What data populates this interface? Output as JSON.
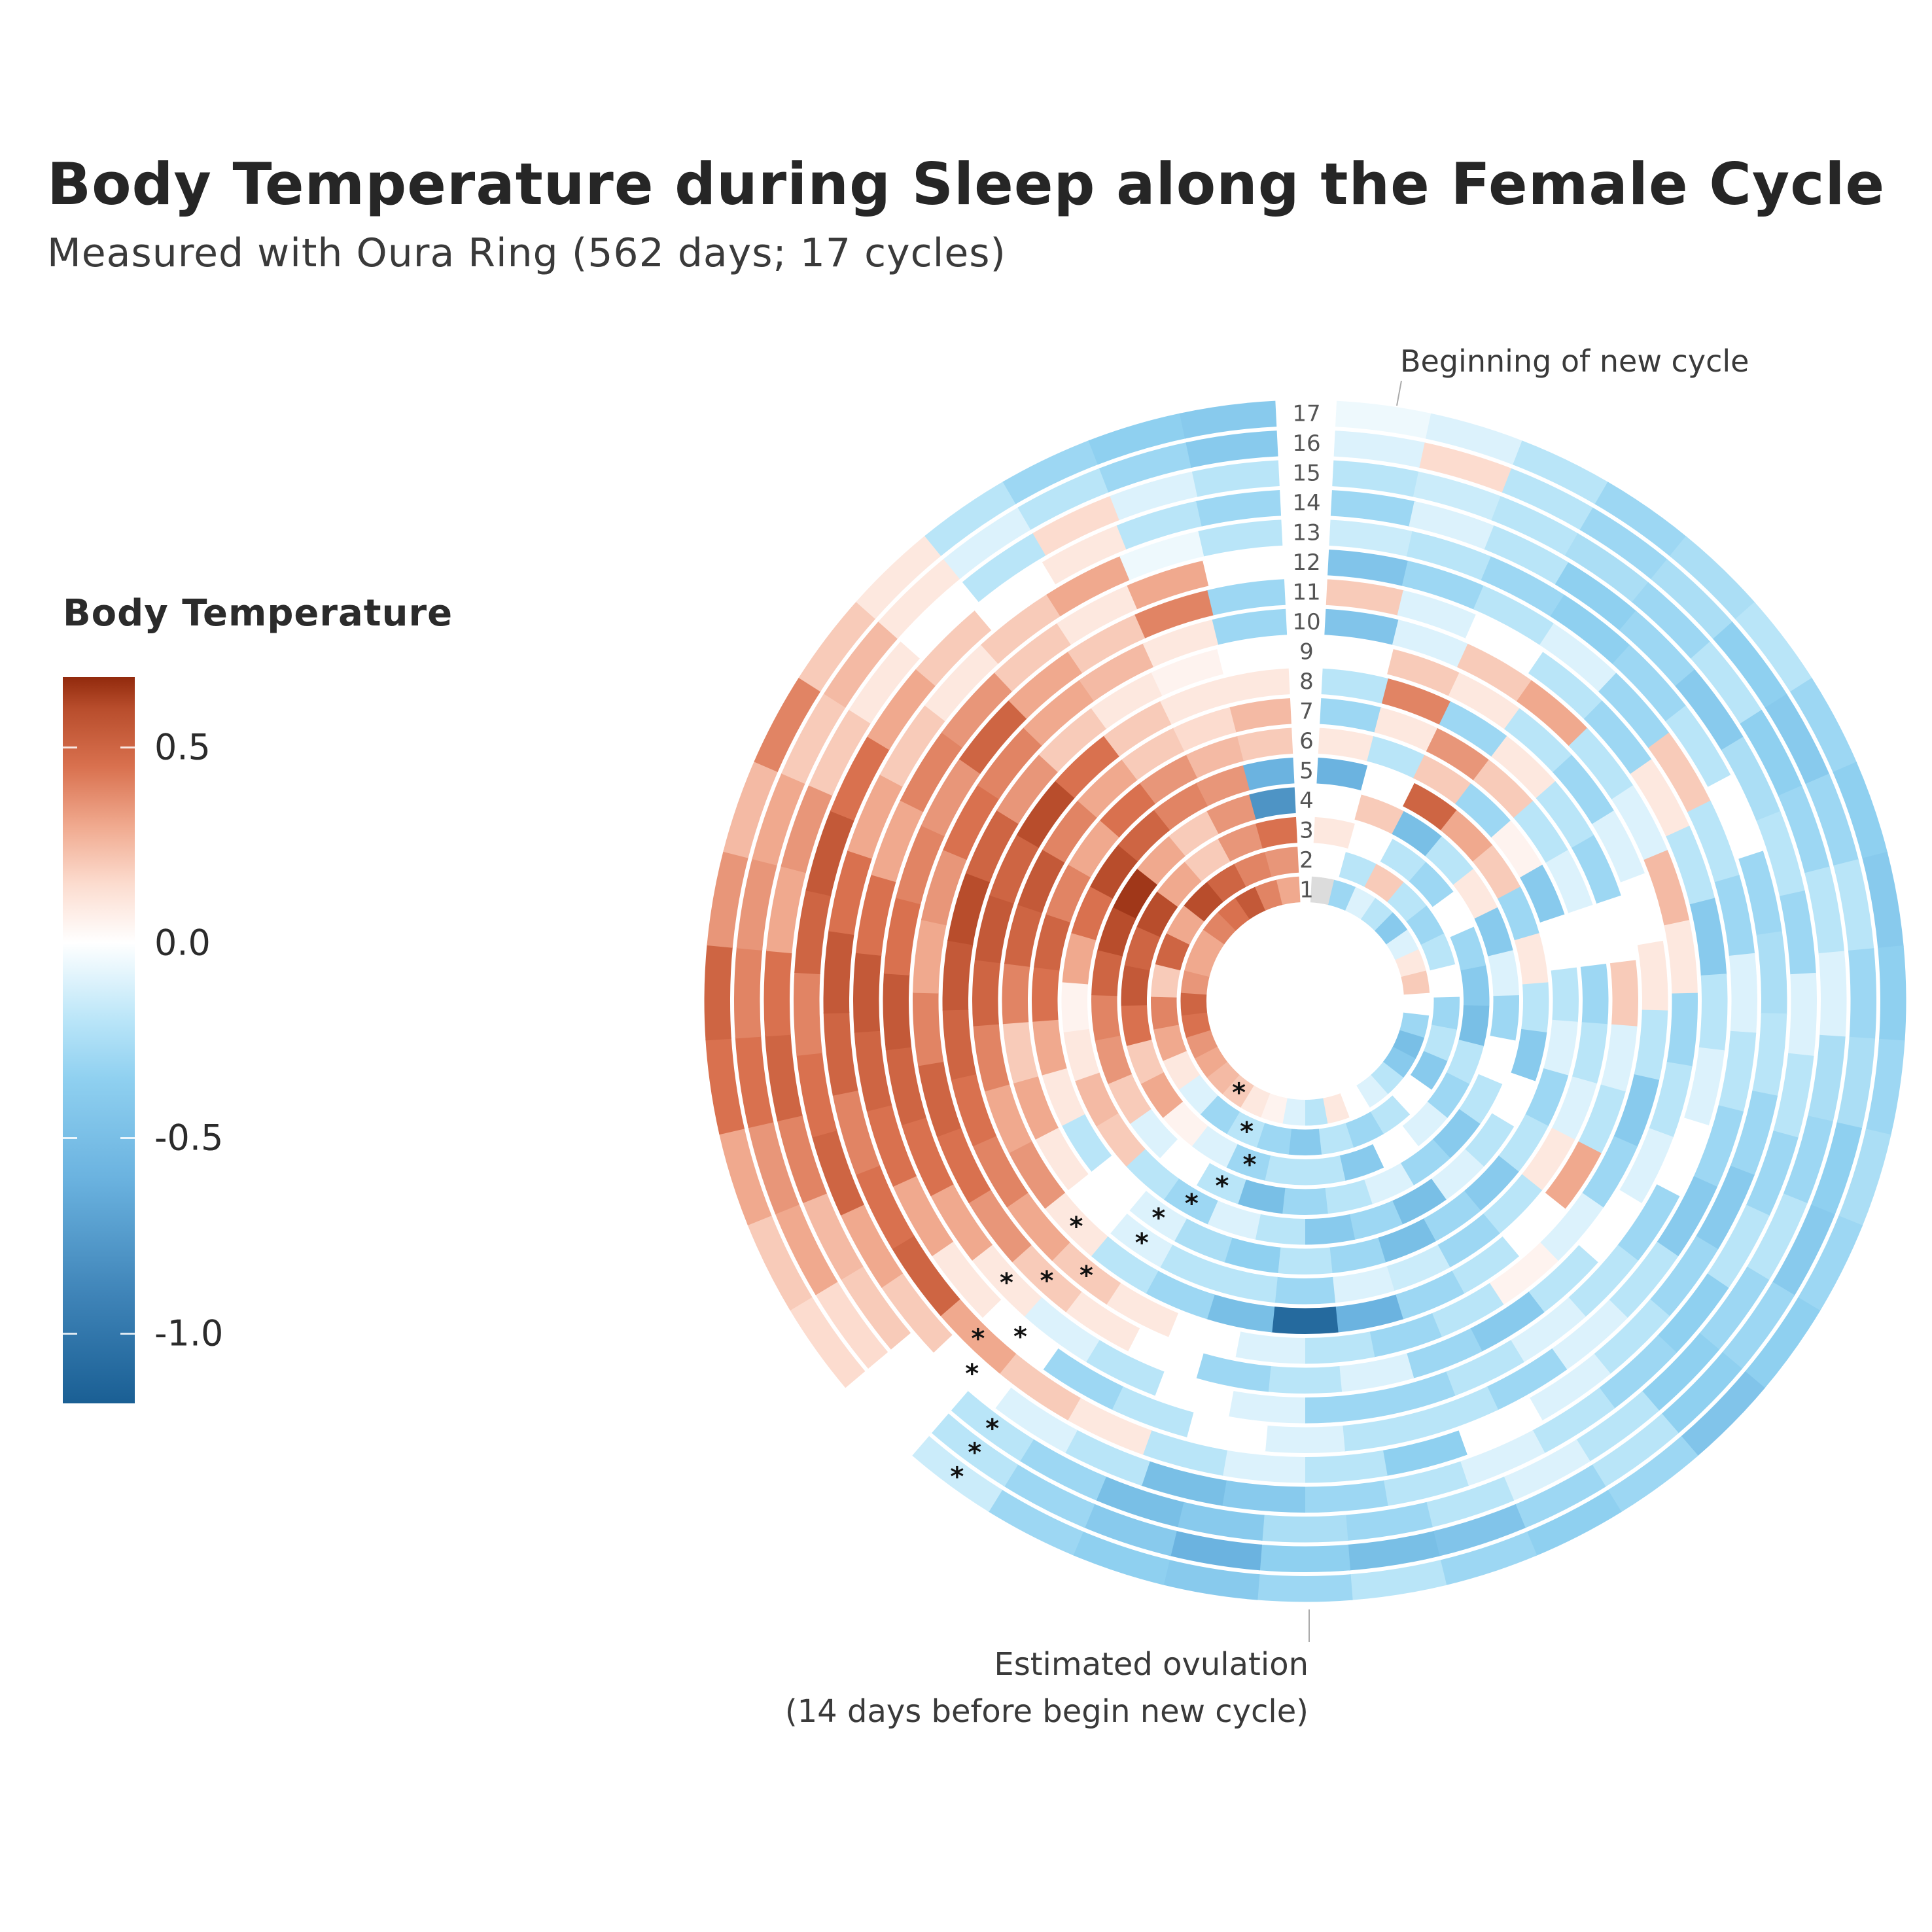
{
  "chart_data": {
    "type": "heatmap",
    "subtype": "polar-radial-heatmap",
    "title": "Body Temperature during Sleep along the Female Cycle",
    "subtitle": "Measured with Oura Ring (562 days; 17 cycles)",
    "legend": {
      "title": "Body Temperature",
      "placement": "left",
      "ticks": [
        "0.5",
        "0.0",
        "-0.5",
        "-1.0"
      ],
      "tick_values": [
        0.5,
        0.0,
        -0.5,
        -1.0
      ],
      "range": [
        -1.18,
        0.68
      ]
    },
    "cycle_labels": [
      "1",
      "2",
      "3",
      "4",
      "5",
      "6",
      "7",
      "8",
      "9",
      "10",
      "11",
      "12",
      "13",
      "14",
      "15",
      "16",
      "17"
    ],
    "annotations": {
      "top": "Beginning of new cycle",
      "bottom_line1": "Estimated ovulation",
      "bottom_line2": "(14 days before begin  new cycle)",
      "ovulation_marker": "*"
    },
    "missing_color": "#dcdcdc",
    "colorscale": {
      "-1.18": "#1a5f94",
      "-0.9": "#3f84b8",
      "-0.6": "#6bb3e0",
      "-0.35": "#8fd0f0",
      "-0.2": "#b9e5f8",
      "0.0": "#ffffff",
      "0.15": "#fcdccf",
      "0.3": "#f0a98e",
      "0.45": "#d9714f",
      "0.6": "#b84d2c",
      "0.68": "#922a0d"
    },
    "series": [
      {
        "name": "1",
        "values": [
          null,
          -0.3,
          -0.1,
          -0.2,
          -0.4,
          -0.1,
          0.1,
          0.2,
          0.0,
          -0.3,
          -0.5,
          -0.4,
          -0.2,
          -0.1,
          0.0,
          0.1,
          -0.2,
          -0.1,
          0.05,
          0.1,
          0.2,
          0.25,
          0.3,
          0.35,
          0.45,
          0.5,
          0.35,
          0.3,
          0.3,
          0.4,
          0.45,
          0.55,
          0.4,
          0.3
        ],
        "ovulation_day": 20
      },
      {
        "name": "2",
        "values": [
          0.0,
          -0.2,
          0.2,
          -0.2,
          -0.3,
          -0.2,
          0.0,
          -0.3,
          -0.2,
          -0.4,
          0.0,
          -0.2,
          -0.3,
          -0.2,
          -0.4,
          -0.3,
          -0.2,
          -0.3,
          -0.1,
          0.1,
          0.3,
          0.4,
          0.2,
          0.5,
          0.3,
          0.6,
          0.5,
          0.4,
          0.35
        ],
        "ovulation_day": 16
      },
      {
        "name": "3",
        "values": [
          0.1,
          0.0,
          -0.2,
          -0.3,
          0.0,
          -0.3,
          -0.4,
          -0.5,
          -0.2,
          -0.3,
          -0.1,
          0.0,
          -0.4,
          -0.2,
          -0.2,
          -0.3,
          -0.1,
          0.05,
          0.3,
          0.2,
          0.45,
          0.55,
          0.5,
          0.6,
          0.3,
          0.2,
          0.35,
          0.45
        ],
        "ovulation_day": 15
      },
      {
        "name": "4",
        "values": [
          0.0,
          0.2,
          -0.5,
          -0.2,
          0.1,
          -0.4,
          -0.1,
          -0.3,
          0.0,
          -0.2,
          -0.4,
          -0.3,
          -0.1,
          -0.2,
          -0.3,
          -0.5,
          -0.2,
          0.0,
          -0.1,
          0.2,
          0.35,
          0.4,
          0.5,
          0.6,
          0.65,
          0.3,
          0.2,
          0.35,
          -0.8
        ],
        "ovulation_day": 16
      },
      {
        "name": "5",
        "values": [
          -0.6,
          0.0,
          0.5,
          0.3,
          0.2,
          -0.3,
          0.1,
          -0.2,
          -0.4,
          0.0,
          -0.2,
          -0.1,
          -0.5,
          -0.3,
          -0.4,
          -0.2,
          -0.1,
          -0.3,
          -0.2,
          0.2,
          0.25,
          0.1,
          0.05,
          0.3,
          0.45,
          0.6,
          0.5,
          0.4,
          0.35,
          -0.6
        ],
        "ovulation_day": 17
      },
      {
        "name": "6",
        "values": [
          0.1,
          -0.2,
          0.2,
          -0.3,
          0.05,
          -0.4,
          0.0,
          -0.2,
          -0.1,
          -0.3,
          -0.2,
          -0.4,
          -0.3,
          -0.5,
          -0.3,
          -0.2,
          -0.35,
          -0.25,
          -0.1,
          0.0,
          -0.2,
          0.1,
          0.3,
          0.45,
          0.5,
          0.4,
          0.3,
          0.45,
          0.35,
          0.25,
          0.2
        ],
        "ovulation_day": 18
      },
      {
        "name": "7",
        "values": [
          -0.3,
          0.1,
          0.35,
          0.2,
          -0.2,
          -0.1,
          0.0,
          -0.3,
          -0.2,
          -0.1,
          0.1,
          -0.2,
          -0.3,
          -0.15,
          -0.1,
          -0.3,
          -0.2,
          -0.2,
          -0.1,
          0.0,
          0.1,
          0.3,
          0.2,
          0.4,
          0.5,
          0.55,
          0.4,
          0.3,
          0.2,
          0.15,
          0.25
        ],
        "ovulation_day": 18
      },
      {
        "name": "8",
        "values": [
          -0.2,
          0.4,
          -0.3,
          0.1,
          -0.2,
          -0.3,
          0.0,
          0.2,
          -0.1,
          -0.2,
          0.3,
          0.0,
          -0.2,
          -0.3,
          -0.6,
          -1.1,
          -0.5,
          -0.3,
          -0.2,
          0.1,
          0.35,
          0.3,
          0.4,
          0.5,
          0.55,
          0.5,
          0.6,
          0.45,
          0.2,
          0.1,
          0.1
        ],
        "ovulation_day": 19
      },
      {
        "name": "9",
        "values": [
          0.0,
          0.2,
          0.1,
          -0.2,
          -0.3,
          -0.1,
          0.0,
          0.1,
          -0.2,
          -0.4,
          -0.3,
          -0.1,
          0.05,
          -0.2,
          -0.3,
          -0.2,
          -0.1,
          0.0,
          0.1,
          0.2,
          0.3,
          0.4,
          0.45,
          0.5,
          0.55,
          0.6,
          0.5,
          0.35,
          0.2,
          0.1,
          0.05,
          0.0
        ],
        "ovulation_day": 19
      },
      {
        "name": "10",
        "values": [
          -0.45,
          -0.1,
          0.2,
          0.3,
          -0.2,
          -0.1,
          0.25,
          0.1,
          -0.3,
          -0.2,
          -0.1,
          0.0,
          -0.2,
          -0.4,
          -0.3,
          -0.1,
          -0.2,
          -0.3,
          0.0,
          0.1,
          0.2,
          0.35,
          0.45,
          0.5,
          0.4,
          0.3,
          0.35,
          0.45,
          0.4,
          0.3,
          0.25,
          0.1,
          -0.3
        ],
        "ovulation_day": 20
      },
      {
        "name": "11",
        "values": [
          0.2,
          -0.1,
          0.0,
          -0.2,
          -0.3,
          0.1,
          -0.2,
          -0.4,
          -0.2,
          -0.1,
          0.0,
          -0.3,
          -0.2,
          -0.1,
          -0.2,
          -0.3,
          -0.3,
          -0.1,
          0.0,
          -0.2,
          -0.1,
          0.1,
          0.3,
          0.45,
          0.5,
          0.55,
          0.45,
          0.4,
          0.35,
          0.5,
          0.3,
          0.2,
          0.4,
          -0.3
        ],
        "ovulation_day": 21
      },
      {
        "name": "12",
        "values": [
          -0.45,
          -0.3,
          -0.2,
          -0.1,
          -0.3,
          0.2,
          -0.2,
          -0.3,
          -0.1,
          -0.2,
          -0.3,
          -0.4,
          -0.2,
          -0.1,
          -0.3,
          -0.2,
          -0.2,
          -0.1,
          0.0,
          -0.2,
          -0.3,
          0.0,
          0.1,
          0.3,
          0.45,
          0.5,
          0.55,
          0.45,
          0.3,
          0.4,
          0.35,
          0.2,
          0.1,
          0.3,
          0.0
        ],
        "ovulation_day": 21
      },
      {
        "name": "13",
        "values": [
          -0.15,
          -0.2,
          -0.3,
          -0.35,
          -0.3,
          -0.2,
          0.0,
          -0.3,
          -0.25,
          -0.2,
          -0.3,
          -0.4,
          -0.3,
          -0.2,
          -0.1,
          0.0,
          -0.35,
          -0.2,
          -0.1,
          -0.2,
          0.1,
          0.2,
          0.3,
          0.5,
          0.45,
          0.4,
          0.5,
          0.55,
          0.45,
          0.3,
          0.2,
          0.1,
          0.2,
          0.3,
          -0.05,
          -0.2
        ],
        "ovulation_day": 22
      },
      {
        "name": "14",
        "values": [
          -0.3,
          -0.1,
          -0.2,
          -0.35,
          -0.3,
          -0.4,
          -0.25,
          -0.2,
          -0.3,
          -0.1,
          -0.2,
          -0.3,
          -0.2,
          -0.35,
          -0.3,
          -0.2,
          -0.1,
          -0.2,
          -0.3,
          -0.4,
          -0.5,
          -0.2,
          -0.1,
          0.0,
          0.2,
          0.3,
          0.5,
          0.45,
          0.4,
          0.5,
          0.55,
          0.45,
          0.3,
          0.2,
          0.0,
          0.1,
          -0.2,
          -0.3
        ],
        "ovulation_day": 23
      },
      {
        "name": "15",
        "values": [
          -0.2,
          -0.15,
          -0.2,
          -0.25,
          -0.3,
          -0.2,
          -0.35,
          -0.3,
          -0.2,
          -0.1,
          -0.25,
          -0.3,
          -0.2,
          -0.3,
          -0.35,
          -0.2,
          -0.1,
          -0.2,
          -0.3,
          -0.25,
          -0.4,
          -0.5,
          -0.3,
          -0.2,
          0.0,
          0.2,
          0.25,
          0.4,
          0.5,
          0.45,
          0.3,
          0.35,
          0.2,
          0.1,
          0.0,
          -0.2,
          0.15,
          -0.1,
          -0.2
        ],
        "ovulation_day": 23
      },
      {
        "name": "16",
        "values": [
          -0.1,
          0.15,
          -0.2,
          -0.3,
          -0.25,
          -0.35,
          -0.4,
          -0.3,
          -0.2,
          -0.3,
          -0.25,
          -0.35,
          -0.4,
          -0.3,
          -0.35,
          -0.2,
          -0.3,
          -0.45,
          -0.5,
          -0.35,
          -0.6,
          -0.4,
          -0.3,
          -0.2,
          0.0,
          0.15,
          0.3,
          0.35,
          0.45,
          0.4,
          0.35,
          0.3,
          0.2,
          0.25,
          0.1,
          -0.1,
          -0.2,
          -0.3,
          -0.4
        ],
        "ovulation_day": 23
      },
      {
        "name": "17",
        "values": [
          -0.05,
          -0.1,
          -0.2,
          -0.3,
          -0.25,
          -0.2,
          -0.3,
          -0.35,
          -0.4,
          -0.35,
          -0.3,
          -0.25,
          -0.3,
          -0.35,
          -0.45,
          -0.3,
          -0.35,
          -0.3,
          -0.2,
          -0.3,
          -0.4,
          -0.35,
          -0.3,
          -0.15,
          0.0,
          0.15,
          0.2,
          0.3,
          0.45,
          0.5,
          0.35,
          0.25,
          0.4,
          0.2,
          0.1,
          -0.2,
          -0.3,
          -0.35,
          -0.4
        ],
        "ovulation_day": 23
      }
    ]
  }
}
